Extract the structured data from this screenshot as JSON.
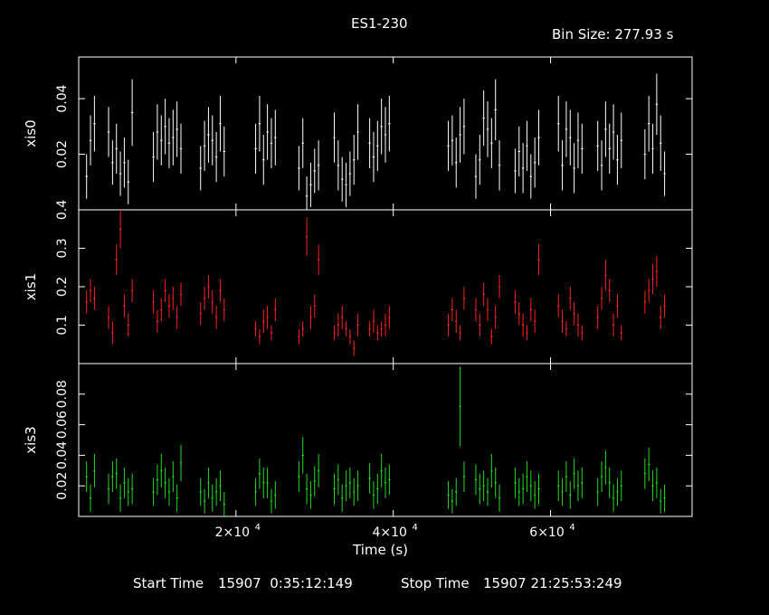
{
  "title": "ES1-230",
  "bin_size": "Bin Size: 277.93 s",
  "xlabel": "Time (s)",
  "footer": {
    "start_label": "Start Time",
    "start_value": "15907  0:35:12:149",
    "stop_label": "Stop Time",
    "stop_value": "15907 21:25:53:249"
  },
  "colors": {
    "xis0": "#ffffff",
    "xis1": "#ff2020",
    "xis3": "#22dd22",
    "background": "#000000"
  },
  "chart_data": [
    {
      "type": "scatter",
      "name": "xis0",
      "ylabel": "xis0",
      "color": "#ffffff",
      "xlim": [
        0,
        78000
      ],
      "ylim": [
        0,
        0.055
      ],
      "yticks": [
        0.02,
        0.04
      ],
      "ytick_labels": [
        "0.02",
        "0.04"
      ],
      "x": [
        1000,
        1500,
        2000,
        3800,
        4300,
        4800,
        5300,
        5800,
        6300,
        6800,
        9500,
        10000,
        10500,
        11000,
        11500,
        12000,
        12500,
        13000,
        15500,
        16000,
        16500,
        17000,
        17500,
        18000,
        18500,
        22500,
        23000,
        23500,
        24000,
        24500,
        25000,
        28000,
        28500,
        29000,
        29500,
        30000,
        30500,
        32500,
        33000,
        33500,
        34000,
        34500,
        35000,
        35500,
        37000,
        37500,
        38000,
        38500,
        39000,
        39500,
        47000,
        47500,
        48000,
        48500,
        49000,
        50500,
        51000,
        51500,
        52000,
        52500,
        53000,
        53500,
        55500,
        56000,
        56500,
        57000,
        57500,
        58000,
        58500,
        61000,
        61500,
        62000,
        62500,
        63000,
        63500,
        64000,
        66000,
        66500,
        67000,
        67500,
        68000,
        68500,
        69000,
        72000,
        72500,
        73000,
        73500,
        74000,
        74500
      ],
      "y": [
        0.012,
        0.025,
        0.031,
        0.028,
        0.017,
        0.022,
        0.013,
        0.017,
        0.01,
        0.035,
        0.019,
        0.028,
        0.025,
        0.03,
        0.024,
        0.026,
        0.029,
        0.022,
        0.015,
        0.023,
        0.027,
        0.025,
        0.019,
        0.031,
        0.021,
        0.022,
        0.031,
        0.018,
        0.028,
        0.024,
        0.026,
        0.015,
        0.024,
        0.005,
        0.009,
        0.014,
        0.016,
        0.026,
        0.016,
        0.011,
        0.009,
        0.013,
        0.018,
        0.028,
        0.024,
        0.019,
        0.023,
        0.03,
        0.027,
        0.031,
        0.023,
        0.025,
        0.017,
        0.027,
        0.03,
        0.012,
        0.018,
        0.033,
        0.029,
        0.024,
        0.036,
        0.016,
        0.014,
        0.021,
        0.015,
        0.023,
        0.012,
        0.017,
        0.026,
        0.031,
        0.016,
        0.029,
        0.026,
        0.015,
        0.025,
        0.022,
        0.023,
        0.016,
        0.029,
        0.022,
        0.028,
        0.018,
        0.025,
        0.02,
        0.031,
        0.022,
        0.038,
        0.024,
        0.013
      ],
      "yerr": [
        0.008,
        0.009,
        0.01,
        0.009,
        0.008,
        0.009,
        0.008,
        0.009,
        0.008,
        0.012,
        0.009,
        0.01,
        0.009,
        0.01,
        0.009,
        0.01,
        0.01,
        0.009,
        0.008,
        0.009,
        0.01,
        0.009,
        0.009,
        0.01,
        0.009,
        0.009,
        0.01,
        0.009,
        0.01,
        0.009,
        0.01,
        0.008,
        0.009,
        0.007,
        0.008,
        0.008,
        0.009,
        0.009,
        0.009,
        0.008,
        0.008,
        0.008,
        0.009,
        0.01,
        0.009,
        0.009,
        0.009,
        0.01,
        0.01,
        0.01,
        0.009,
        0.009,
        0.009,
        0.01,
        0.01,
        0.008,
        0.009,
        0.01,
        0.01,
        0.009,
        0.011,
        0.009,
        0.008,
        0.009,
        0.009,
        0.009,
        0.008,
        0.009,
        0.01,
        0.01,
        0.009,
        0.01,
        0.01,
        0.009,
        0.01,
        0.009,
        0.009,
        0.009,
        0.01,
        0.009,
        0.01,
        0.009,
        0.01,
        0.009,
        0.01,
        0.009,
        0.011,
        0.01,
        0.008
      ]
    },
    {
      "type": "scatter",
      "name": "xis1",
      "ylabel": "xis1",
      "color": "#ff2020",
      "xlim": [
        0,
        78000
      ],
      "ylim": [
        0,
        0.4
      ],
      "yticks": [
        0.1,
        0.2,
        0.3,
        0.4
      ],
      "ytick_labels": [
        "0.1",
        "0.2",
        "0.3",
        "0.4"
      ],
      "x": [
        1000,
        1500,
        2000,
        3800,
        4300,
        4800,
        5300,
        5800,
        6300,
        6800,
        9500,
        10000,
        10500,
        11000,
        11500,
        12000,
        12500,
        13000,
        15500,
        16000,
        16500,
        17000,
        17500,
        18000,
        18500,
        22500,
        23000,
        23500,
        24000,
        24500,
        25000,
        28000,
        28500,
        29000,
        29500,
        30000,
        30500,
        32500,
        33000,
        33500,
        34000,
        34500,
        35000,
        35500,
        37000,
        37500,
        38000,
        38500,
        39000,
        39500,
        47000,
        47500,
        48000,
        48500,
        49000,
        50500,
        51000,
        51500,
        52000,
        52500,
        53000,
        53500,
        55500,
        56000,
        56500,
        57000,
        57500,
        58000,
        58500,
        61000,
        61500,
        62000,
        62500,
        63000,
        63500,
        64000,
        66000,
        66500,
        67000,
        67500,
        68000,
        68500,
        69000,
        72000,
        72500,
        73000,
        73500,
        74000,
        74500
      ],
      "y": [
        0.16,
        0.19,
        0.17,
        0.12,
        0.08,
        0.27,
        0.35,
        0.15,
        0.1,
        0.19,
        0.16,
        0.11,
        0.14,
        0.19,
        0.15,
        0.17,
        0.12,
        0.18,
        0.13,
        0.17,
        0.2,
        0.16,
        0.12,
        0.19,
        0.14,
        0.09,
        0.07,
        0.11,
        0.12,
        0.08,
        0.14,
        0.07,
        0.09,
        0.33,
        0.12,
        0.15,
        0.27,
        0.08,
        0.1,
        0.12,
        0.09,
        0.07,
        0.04,
        0.1,
        0.09,
        0.11,
        0.08,
        0.09,
        0.1,
        0.12,
        0.1,
        0.14,
        0.11,
        0.08,
        0.17,
        0.14,
        0.1,
        0.18,
        0.14,
        0.07,
        0.12,
        0.2,
        0.16,
        0.13,
        0.1,
        0.08,
        0.14,
        0.11,
        0.27,
        0.15,
        0.11,
        0.09,
        0.17,
        0.13,
        0.1,
        0.08,
        0.12,
        0.17,
        0.23,
        0.19,
        0.1,
        0.15,
        0.08,
        0.16,
        0.19,
        0.22,
        0.24,
        0.12,
        0.15
      ],
      "yerr": [
        0.03,
        0.03,
        0.03,
        0.03,
        0.03,
        0.04,
        0.05,
        0.03,
        0.03,
        0.03,
        0.03,
        0.03,
        0.03,
        0.03,
        0.03,
        0.03,
        0.03,
        0.03,
        0.03,
        0.03,
        0.03,
        0.03,
        0.03,
        0.03,
        0.03,
        0.02,
        0.02,
        0.03,
        0.03,
        0.02,
        0.03,
        0.02,
        0.02,
        0.05,
        0.03,
        0.03,
        0.04,
        0.02,
        0.03,
        0.03,
        0.02,
        0.02,
        0.02,
        0.03,
        0.02,
        0.03,
        0.02,
        0.02,
        0.03,
        0.03,
        0.03,
        0.03,
        0.03,
        0.02,
        0.03,
        0.03,
        0.03,
        0.03,
        0.03,
        0.02,
        0.03,
        0.03,
        0.03,
        0.03,
        0.03,
        0.02,
        0.03,
        0.03,
        0.04,
        0.03,
        0.03,
        0.02,
        0.03,
        0.03,
        0.03,
        0.02,
        0.03,
        0.03,
        0.04,
        0.03,
        0.03,
        0.03,
        0.02,
        0.03,
        0.03,
        0.04,
        0.04,
        0.03,
        0.03
      ]
    },
    {
      "type": "scatter",
      "name": "xis3",
      "ylabel": "xis3",
      "color": "#22dd22",
      "xlim": [
        0,
        78000
      ],
      "ylim": [
        0,
        0.1
      ],
      "yticks": [
        0.02,
        0.04,
        0.06,
        0.08
      ],
      "ytick_labels": [
        "0.02",
        "0.04",
        "0.06",
        "0.08"
      ],
      "x": [
        1000,
        1500,
        2000,
        3800,
        4300,
        4800,
        5300,
        5800,
        6300,
        6800,
        9500,
        10000,
        10500,
        11000,
        11500,
        12000,
        12500,
        13000,
        15500,
        16000,
        16500,
        17000,
        17500,
        18000,
        18500,
        22500,
        23000,
        23500,
        24000,
        24500,
        25000,
        28000,
        28500,
        29000,
        29500,
        30000,
        30500,
        32500,
        33000,
        33500,
        34000,
        34500,
        35000,
        35500,
        37000,
        37500,
        38000,
        38500,
        39000,
        39500,
        47000,
        47500,
        48000,
        48500,
        49000,
        50500,
        51000,
        51500,
        52000,
        52500,
        53000,
        53500,
        55500,
        56000,
        56500,
        57000,
        57500,
        58000,
        58500,
        61000,
        61500,
        62000,
        62500,
        63000,
        63500,
        64000,
        66000,
        66500,
        67000,
        67500,
        68000,
        68500,
        69000,
        72000,
        72500,
        73000,
        73500,
        74000,
        74500
      ],
      "y": [
        0.026,
        0.012,
        0.03,
        0.018,
        0.026,
        0.028,
        0.012,
        0.022,
        0.016,
        0.018,
        0.016,
        0.024,
        0.03,
        0.022,
        0.016,
        0.026,
        0.012,
        0.035,
        0.016,
        0.01,
        0.022,
        0.012,
        0.016,
        0.02,
        0.008,
        0.016,
        0.028,
        0.022,
        0.022,
        0.01,
        0.014,
        0.026,
        0.04,
        0.018,
        0.014,
        0.023,
        0.03,
        0.018,
        0.024,
        0.012,
        0.02,
        0.022,
        0.016,
        0.02,
        0.025,
        0.014,
        0.018,
        0.03,
        0.022,
        0.024,
        0.014,
        0.01,
        0.016,
        0.072,
        0.026,
        0.024,
        0.018,
        0.02,
        0.016,
        0.03,
        0.022,
        0.012,
        0.022,
        0.016,
        0.018,
        0.026,
        0.02,
        0.014,
        0.018,
        0.02,
        0.016,
        0.026,
        0.014,
        0.028,
        0.02,
        0.022,
        0.016,
        0.026,
        0.032,
        0.022,
        0.012,
        0.016,
        0.02,
        0.028,
        0.034,
        0.02,
        0.022,
        0.01,
        0.012
      ],
      "yerr": [
        0.01,
        0.009,
        0.011,
        0.01,
        0.01,
        0.01,
        0.009,
        0.01,
        0.009,
        0.01,
        0.009,
        0.01,
        0.011,
        0.01,
        0.009,
        0.01,
        0.009,
        0.012,
        0.009,
        0.008,
        0.01,
        0.009,
        0.009,
        0.01,
        0.008,
        0.009,
        0.01,
        0.01,
        0.01,
        0.008,
        0.009,
        0.01,
        0.012,
        0.01,
        0.009,
        0.01,
        0.011,
        0.01,
        0.01,
        0.009,
        0.01,
        0.01,
        0.009,
        0.01,
        0.01,
        0.009,
        0.01,
        0.011,
        0.01,
        0.01,
        0.009,
        0.008,
        0.009,
        0.026,
        0.01,
        0.01,
        0.01,
        0.01,
        0.009,
        0.011,
        0.01,
        0.009,
        0.01,
        0.009,
        0.01,
        0.01,
        0.01,
        0.009,
        0.01,
        0.01,
        0.009,
        0.01,
        0.009,
        0.01,
        0.01,
        0.01,
        0.009,
        0.01,
        0.011,
        0.01,
        0.009,
        0.009,
        0.01,
        0.01,
        0.011,
        0.01,
        0.01,
        0.008,
        0.009
      ]
    }
  ],
  "xticks": [
    20000,
    40000,
    60000
  ],
  "xtick_labels": [
    {
      "mantissa": "2×10",
      "exponent": "4"
    },
    {
      "mantissa": "4×10",
      "exponent": "4"
    },
    {
      "mantissa": "6×10",
      "exponent": "4"
    }
  ]
}
